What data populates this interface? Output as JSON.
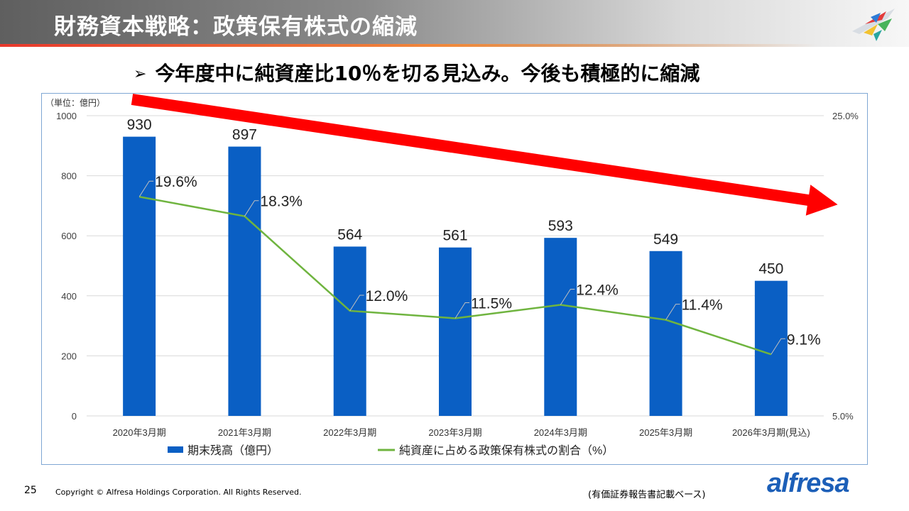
{
  "header": {
    "title": "財務資本戦略：政策保有株式の縮減"
  },
  "subtitle": {
    "bullet": "➢",
    "text": "今年度中に純資産比10％を切る見込み。今後も積極的に縮減"
  },
  "chart_data": {
    "type": "bar+line",
    "unit_label": "（単位：億円）",
    "categories": [
      "2020年3月期",
      "2021年3月期",
      "2022年3月期",
      "2023年3月期",
      "2024年3月期",
      "2025年3月期",
      "2026年3月期(見込)"
    ],
    "series": [
      {
        "name": "期末残高（億円）",
        "type": "bar",
        "axis": "left",
        "color": "#0a5fc4",
        "values": [
          930,
          897,
          564,
          561,
          593,
          549,
          450
        ],
        "labels": [
          "930",
          "897",
          "564",
          "561",
          "593",
          "549",
          "450"
        ]
      },
      {
        "name": "純資産に占める政策保有株式の割合（%）",
        "type": "line",
        "axis": "right",
        "color": "#6fb43f",
        "values": [
          19.6,
          18.3,
          12.0,
          11.5,
          12.4,
          11.4,
          9.1
        ],
        "labels": [
          "19.6%",
          "18.3%",
          "12.0%",
          "11.5%",
          "12.4%",
          "11.4%",
          "9.1%"
        ]
      }
    ],
    "y_left": {
      "min": 0,
      "max": 1000,
      "ticks": [
        "0",
        "200",
        "400",
        "600",
        "800",
        "1000"
      ]
    },
    "y_right": {
      "min": 5.0,
      "max": 25.0,
      "ticks": [
        "5.0%",
        "25.0%"
      ]
    },
    "trend_arrow": {
      "color": "#ff0000",
      "direction": "down-right"
    }
  },
  "footer": {
    "page_number": "25",
    "copyright": "Copyright © Alfresa Holdings Corporation. All Rights Reserved.",
    "source": "(有価証券報告書記載ベース)",
    "brand": "alfresa"
  }
}
